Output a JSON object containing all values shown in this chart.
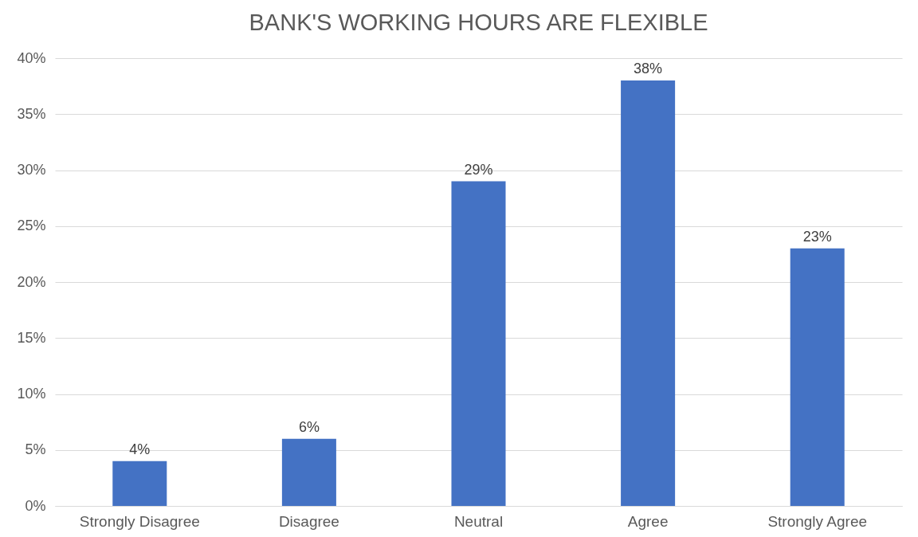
{
  "chart_data": {
    "type": "bar",
    "title": "BANK'S WORKING HOURS ARE FLEXIBLE",
    "categories": [
      "Strongly Disagree",
      "Disagree",
      "Neutral",
      "Agree",
      "Strongly Agree"
    ],
    "values": [
      4,
      6,
      29,
      38,
      23
    ],
    "value_labels": [
      "4%",
      "6%",
      "29%",
      "38%",
      "23%"
    ],
    "color": "#4472c4",
    "ylim": [
      0,
      40
    ],
    "yticks": [
      {
        "value": 0,
        "label": "0%"
      },
      {
        "value": 5,
        "label": "5%"
      },
      {
        "value": 10,
        "label": "10%"
      },
      {
        "value": 15,
        "label": "15%"
      },
      {
        "value": 20,
        "label": "20%"
      },
      {
        "value": 25,
        "label": "25%"
      },
      {
        "value": 30,
        "label": "30%"
      },
      {
        "value": 35,
        "label": "35%"
      },
      {
        "value": 40,
        "label": "40%"
      }
    ],
    "grid": "y"
  }
}
